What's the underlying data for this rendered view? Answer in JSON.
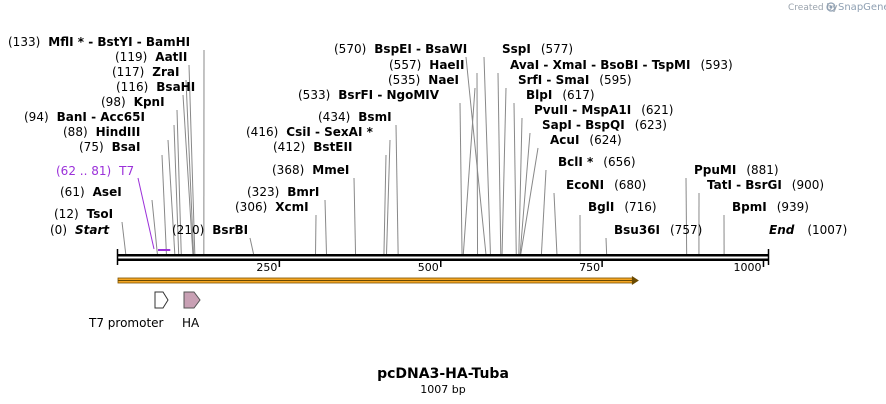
{
  "credit": {
    "prefix": "Created by",
    "brand": "SnapGene"
  },
  "plasmid": {
    "name": "pcDNA3-HA-Tuba",
    "length_label": "1007 bp",
    "length": 1007
  },
  "axis": {
    "ticks": [
      250,
      500,
      750,
      1000
    ],
    "tick_labels": [
      "250",
      "500",
      "750",
      "1000"
    ]
  },
  "ends": {
    "start": {
      "pos": "(0)",
      "name": "Start"
    },
    "end": {
      "pos": "(1007)",
      "name": "End"
    }
  },
  "primer": {
    "range": "(62 .. 81)",
    "name": "T7",
    "start": 62,
    "end": 81,
    "color": "#9b30d9"
  },
  "features": [
    {
      "name": "T7 promoter",
      "start": 62,
      "end": 81,
      "color": "#ffffff"
    },
    {
      "name": "HA",
      "start": 106,
      "end": 132,
      "color": "#c8a0b4"
    }
  ],
  "orf": {
    "start": 0,
    "end": 807,
    "color": "#f5a623"
  },
  "sites": [
    {
      "name": "MflI * - BstYI - BamHI",
      "pos_label": "(133)",
      "pos": 133,
      "side": "left"
    },
    {
      "name": "AatII",
      "pos_label": "(119)",
      "pos": 119,
      "side": "left"
    },
    {
      "name": "ZraI",
      "pos_label": "(117)",
      "pos": 117,
      "side": "left"
    },
    {
      "name": "BsaHI",
      "pos_label": "(116)",
      "pos": 116,
      "side": "left"
    },
    {
      "name": "KpnI",
      "pos_label": "(98)",
      "pos": 98,
      "side": "left"
    },
    {
      "name": "BanI - Acc65I",
      "pos_label": "(94)",
      "pos": 94,
      "side": "left"
    },
    {
      "name": "HindIII",
      "pos_label": "(88)",
      "pos": 88,
      "side": "left"
    },
    {
      "name": "BsaI",
      "pos_label": "(75)",
      "pos": 75,
      "side": "left"
    },
    {
      "name": "AseI",
      "pos_label": "(61)",
      "pos": 61,
      "side": "left"
    },
    {
      "name": "TsoI",
      "pos_label": "(12)",
      "pos": 12,
      "side": "left"
    },
    {
      "name": "BsrBI",
      "pos_label": "(210)",
      "pos": 210,
      "side": "left"
    },
    {
      "name": "BspEI - BsaWI",
      "pos_label": "(570)",
      "pos": 570,
      "side": "left"
    },
    {
      "name": "HaeII",
      "pos_label": "(557)",
      "pos": 557,
      "side": "left"
    },
    {
      "name": "NaeI",
      "pos_label": "(535)",
      "pos": 535,
      "side": "left"
    },
    {
      "name": "BsrFI - NgoMIV",
      "pos_label": "(533)",
      "pos": 533,
      "side": "left"
    },
    {
      "name": "BsmI",
      "pos_label": "(434)",
      "pos": 434,
      "side": "left"
    },
    {
      "name": "CsiI - SexAI *",
      "pos_label": "(416)",
      "pos": 416,
      "side": "left"
    },
    {
      "name": "BstEII",
      "pos_label": "(412)",
      "pos": 412,
      "side": "left"
    },
    {
      "name": "MmeI",
      "pos_label": "(368)",
      "pos": 368,
      "side": "left"
    },
    {
      "name": "BmrI",
      "pos_label": "(323)",
      "pos": 323,
      "side": "left"
    },
    {
      "name": "XcmI",
      "pos_label": "(306)",
      "pos": 306,
      "side": "left"
    },
    {
      "name": "SspI",
      "pos_label": "(577)",
      "pos": 577,
      "side": "right"
    },
    {
      "name": "AvaI - XmaI - BsoBI - TspMI",
      "pos_label": "(593)",
      "pos": 593,
      "side": "right"
    },
    {
      "name": "SrfI - SmaI",
      "pos_label": "(595)",
      "pos": 595,
      "side": "right"
    },
    {
      "name": "BlpI",
      "pos_label": "(617)",
      "pos": 617,
      "side": "right"
    },
    {
      "name": "PvuII - MspA1I",
      "pos_label": "(621)",
      "pos": 621,
      "side": "right"
    },
    {
      "name": "SapI - BspQI",
      "pos_label": "(623)",
      "pos": 623,
      "side": "right"
    },
    {
      "name": "AcuI",
      "pos_label": "(624)",
      "pos": 624,
      "side": "right"
    },
    {
      "name": "BclI *",
      "pos_label": "(656)",
      "pos": 656,
      "side": "right"
    },
    {
      "name": "EcoNI",
      "pos_label": "(680)",
      "pos": 680,
      "side": "right"
    },
    {
      "name": "BglI",
      "pos_label": "(716)",
      "pos": 716,
      "side": "right"
    },
    {
      "name": "Bsu36I",
      "pos_label": "(757)",
      "pos": 757,
      "side": "right"
    },
    {
      "name": "PpuMI",
      "pos_label": "(881)",
      "pos": 881,
      "side": "right"
    },
    {
      "name": "TatI - BsrGI",
      "pos_label": "(900)",
      "pos": 900,
      "side": "right"
    },
    {
      "name": "BpmI",
      "pos_label": "(939)",
      "pos": 939,
      "side": "right"
    }
  ]
}
